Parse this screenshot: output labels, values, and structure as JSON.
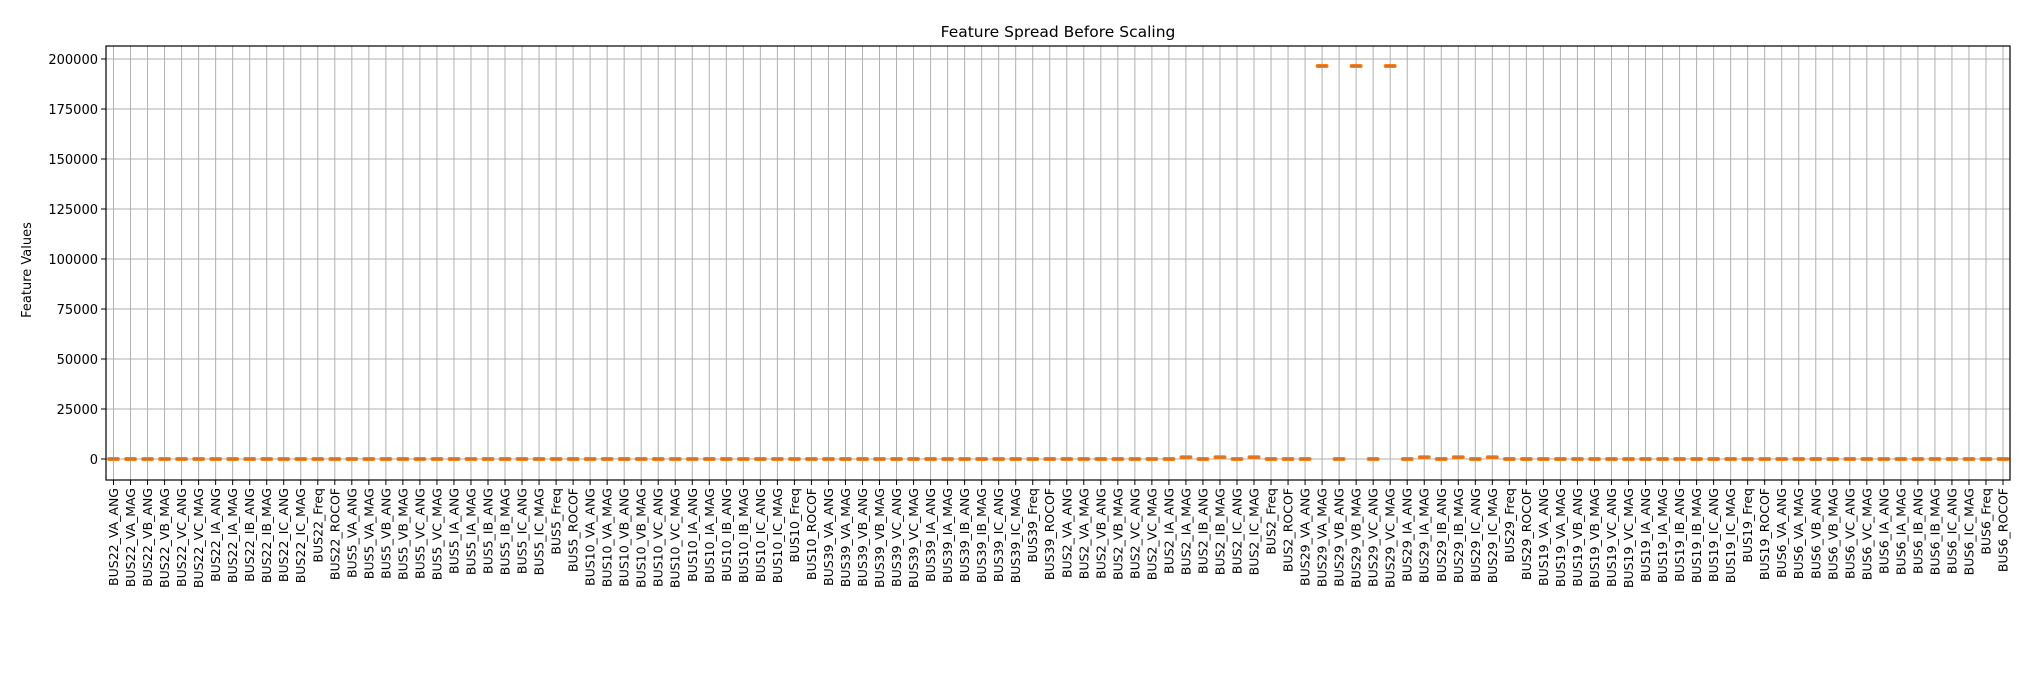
{
  "chart_data": {
    "type": "box",
    "title": "Feature Spread Before Scaling",
    "xlabel": "",
    "ylabel": "Feature Values",
    "ylim": [
      -10500,
      206500
    ],
    "yticks": [
      0,
      25000,
      50000,
      75000,
      100000,
      125000,
      150000,
      175000,
      200000
    ],
    "grid": true,
    "colors": {
      "box": "#333333",
      "median": "#ff7f0e",
      "grid": "#b0b0b0"
    },
    "buses": [
      "BUS22",
      "BUS5",
      "BUS10",
      "BUS39",
      "BUS2",
      "BUS29",
      "BUS19",
      "BUS6"
    ],
    "features": [
      "VA_ANG",
      "VA_MAG",
      "VB_ANG",
      "VB_MAG",
      "VC_ANG",
      "VC_MAG",
      "IA_ANG",
      "IA_MAG",
      "IB_ANG",
      "IB_MAG",
      "IC_ANG",
      "IC_MAG",
      "Freq",
      "ROCOF"
    ],
    "high_value_features": {
      "BUS29_VA_MAG": 196500,
      "BUS29_VB_MAG": 196500,
      "BUS29_VC_MAG": 196500
    },
    "elevated_features": {
      "BUS2_IA_MAG": 900,
      "BUS2_IB_MAG": 900,
      "BUS2_IC_MAG": 900,
      "BUS29_IA_MAG": 900,
      "BUS29_IB_MAG": 900,
      "BUS29_IC_MAG": 900
    },
    "default_value": 0
  }
}
